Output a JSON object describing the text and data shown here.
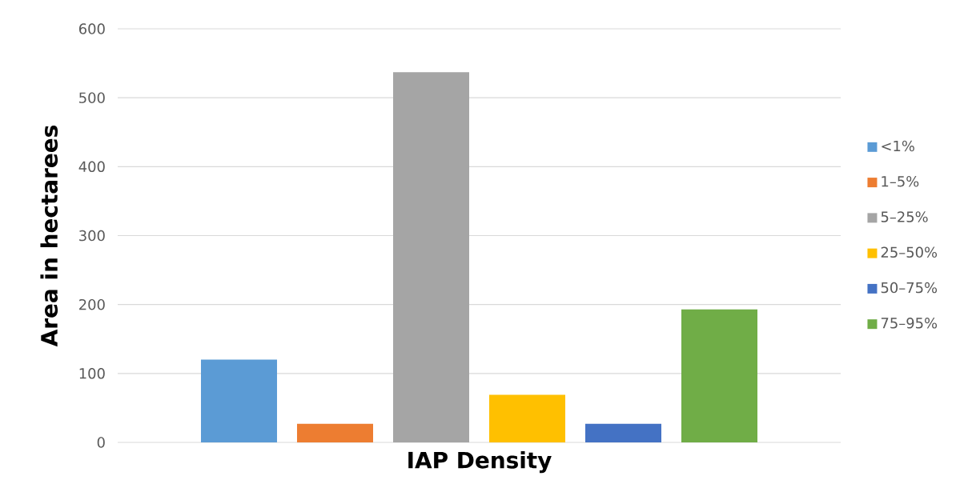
{
  "chart_data": {
    "type": "bar",
    "xlabel": "IAP Density",
    "ylabel": "Area in hectarees",
    "categories": [
      null
    ],
    "series": [
      {
        "name": "<1%",
        "color": "#5b9bd5",
        "values": [
          120
        ]
      },
      {
        "name": "1–5%",
        "color": "#ed7d31",
        "values": [
          27
        ]
      },
      {
        "name": "5–25%",
        "color": "#a5a5a5",
        "values": [
          537
        ]
      },
      {
        "name": "25–50%",
        "color": "#ffc000",
        "values": [
          69
        ]
      },
      {
        "name": "50–75%",
        "color": "#4472c4",
        "values": [
          27
        ]
      },
      {
        "name": "75–95%",
        "color": "#70ad47",
        "values": [
          193
        ]
      }
    ],
    "ylim": [
      0,
      600
    ],
    "yticks": [
      0,
      100,
      200,
      300,
      400,
      500,
      600
    ],
    "grid": "y",
    "legend": "right"
  }
}
